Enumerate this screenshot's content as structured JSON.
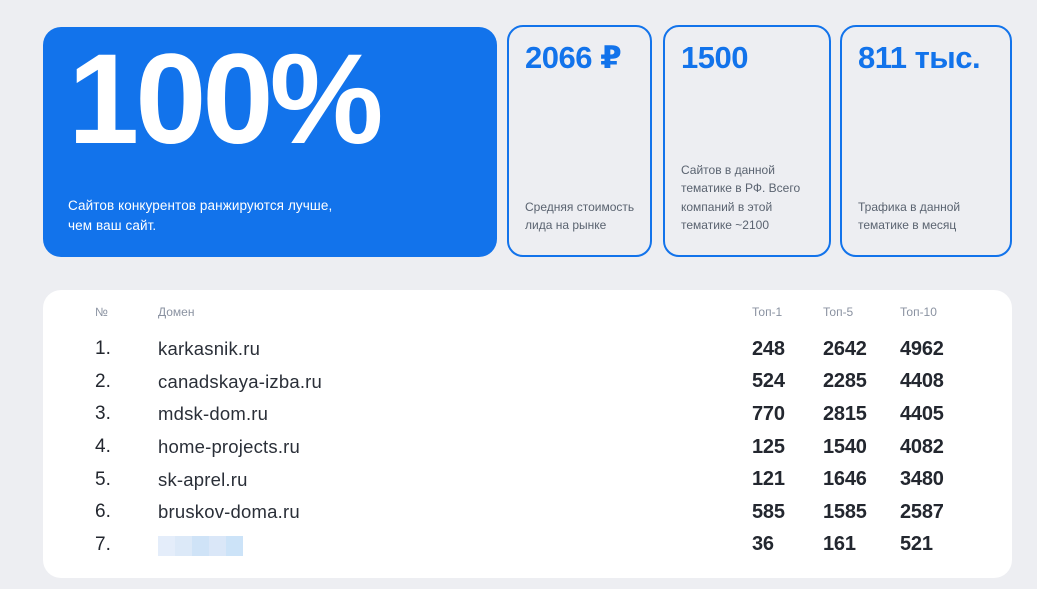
{
  "colors": {
    "accent": "#1273EB",
    "page_background": "#EDEEF2",
    "table_background": "#FFFFFF",
    "body_text": "#23272F",
    "muted_text": "#5A6370",
    "table_header_text": "#8A92A1"
  },
  "hero": {
    "value": "100%",
    "description_line1": "Сайтов конкурентов ранжируются лучше,",
    "description_line2": "чем ваш сайт."
  },
  "stats": [
    {
      "value": "2066 ₽",
      "description": "Средняя стоимость лида на рынке"
    },
    {
      "value": "1500",
      "description": "Сайтов в данной тематике в РФ. Всего компаний в этой тематике ~2100"
    },
    {
      "value": "811 тыс.",
      "description": "Трафика в данной тематике в месяц"
    }
  ],
  "table": {
    "headers": [
      "№",
      "Домен",
      "Топ-1",
      "Топ-5",
      "Топ-10"
    ],
    "rows": [
      {
        "num": "1.",
        "domain": "karkasnik.ru",
        "redacted": false,
        "top1": "248",
        "top5": "2642",
        "top10": "4962"
      },
      {
        "num": "2.",
        "domain": "canadskaya-izba.ru",
        "redacted": false,
        "top1": "524",
        "top5": "2285",
        "top10": "4408"
      },
      {
        "num": "3.",
        "domain": "mdsk-dom.ru",
        "redacted": false,
        "top1": "770",
        "top5": "2815",
        "top10": "4405"
      },
      {
        "num": "4.",
        "domain": "home-projects.ru",
        "redacted": false,
        "top1": "125",
        "top5": "1540",
        "top10": "4082"
      },
      {
        "num": "5.",
        "domain": "sk-aprel.ru",
        "redacted": false,
        "top1": "121",
        "top5": "1646",
        "top10": "3480"
      },
      {
        "num": "6.",
        "domain": "bruskov-doma.ru",
        "redacted": false,
        "top1": "585",
        "top5": "1585",
        "top10": "2587"
      },
      {
        "num": "7.",
        "domain": "",
        "redacted": true,
        "top1": "36",
        "top5": "161",
        "top10": "521"
      }
    ],
    "redacted_blocks": [
      "#E4EDFA",
      "#DCE9F8",
      "#CFE3F7",
      "#DAE7F8",
      "#CCE3F8"
    ]
  }
}
